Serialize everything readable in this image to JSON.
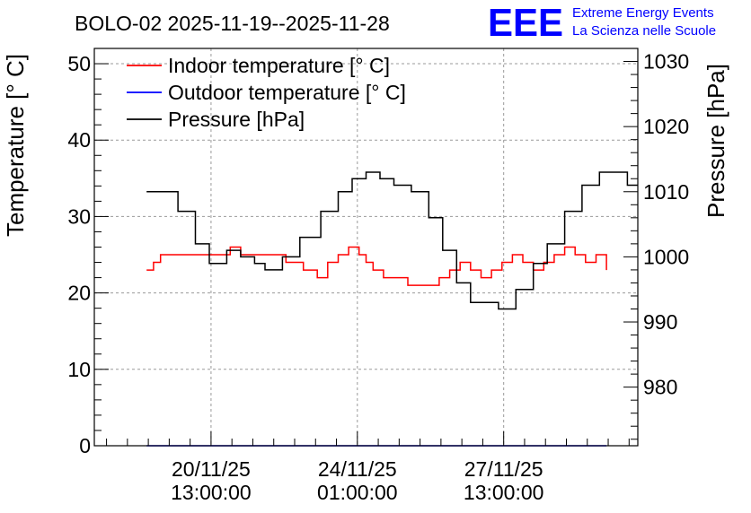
{
  "chart_data": {
    "type": "line",
    "title": "BOLO-02 2025-11-19--2025-11-28",
    "ylabel": "Temperature [° C]",
    "y2label": "Pressure [hPa]",
    "ylim": [
      0,
      52
    ],
    "y2lim": [
      971,
      1032
    ],
    "yticks": [
      0,
      10,
      20,
      30,
      40,
      50
    ],
    "y2ticks": [
      980,
      990,
      1000,
      1010,
      1020,
      1030
    ],
    "xlim": [
      "2025-11-17 18:00",
      "2025-11-30 18:00"
    ],
    "xticks": [
      {
        "x": "2025-11-20 13:00",
        "line1": "20/11/25",
        "line2": "13:00:00"
      },
      {
        "x": "2025-11-24 01:00",
        "line1": "24/11/25",
        "line2": "01:00:00"
      },
      {
        "x": "2025-11-27 13:00",
        "line1": "27/11/25",
        "line2": "13:00:00"
      }
    ],
    "grid": true,
    "legend_position": "top-left",
    "series": [
      {
        "name": "Indoor temperature [° C]",
        "color": "#ff0000",
        "axis": "left",
        "points": [
          [
            "2025-11-19 00:00",
            23
          ],
          [
            "2025-11-19 04:00",
            24
          ],
          [
            "2025-11-19 08:00",
            25
          ],
          [
            "2025-11-20 00:00",
            25
          ],
          [
            "2025-11-20 20:00",
            25
          ],
          [
            "2025-11-21 00:00",
            26
          ],
          [
            "2025-11-21 06:00",
            25
          ],
          [
            "2025-11-21 16:00",
            25
          ],
          [
            "2025-11-22 00:00",
            25
          ],
          [
            "2025-11-22 08:00",
            24
          ],
          [
            "2025-11-22 18:00",
            23
          ],
          [
            "2025-11-23 02:00",
            22
          ],
          [
            "2025-11-23 08:00",
            24
          ],
          [
            "2025-11-23 14:00",
            25
          ],
          [
            "2025-11-23 20:00",
            26
          ],
          [
            "2025-11-24 02:00",
            25
          ],
          [
            "2025-11-24 06:00",
            24
          ],
          [
            "2025-11-24 10:00",
            23
          ],
          [
            "2025-11-24 16:00",
            22
          ],
          [
            "2025-11-25 00:00",
            22
          ],
          [
            "2025-11-25 06:00",
            21
          ],
          [
            "2025-11-25 18:00",
            21
          ],
          [
            "2025-11-26 00:00",
            22
          ],
          [
            "2025-11-26 06:00",
            23
          ],
          [
            "2025-11-26 12:00",
            24
          ],
          [
            "2025-11-26 18:00",
            23
          ],
          [
            "2025-11-27 00:00",
            22
          ],
          [
            "2025-11-27 06:00",
            23
          ],
          [
            "2025-11-27 12:00",
            24
          ],
          [
            "2025-11-27 18:00",
            25
          ],
          [
            "2025-11-28 00:00",
            24
          ],
          [
            "2025-11-28 06:00",
            23
          ],
          [
            "2025-11-28 12:00",
            24
          ],
          [
            "2025-11-28 18:00",
            25
          ],
          [
            "2025-11-29 00:00",
            26
          ],
          [
            "2025-11-29 06:00",
            25
          ],
          [
            "2025-11-29 12:00",
            24
          ],
          [
            "2025-11-29 18:00",
            25
          ],
          [
            "2025-11-30 00:00",
            23
          ]
        ]
      },
      {
        "name": "Outdoor temperature [° C]",
        "color": "#0000ff",
        "axis": "left",
        "points": [
          [
            "2025-11-19 00:00",
            0
          ],
          [
            "2025-11-30 00:00",
            0
          ]
        ]
      },
      {
        "name": "Pressure [hPa]",
        "color": "#000000",
        "axis": "right",
        "points": [
          [
            "2025-11-19 00:00",
            1010
          ],
          [
            "2025-11-19 10:00",
            1010
          ],
          [
            "2025-11-19 18:00",
            1007
          ],
          [
            "2025-11-20 04:00",
            1002
          ],
          [
            "2025-11-20 12:00",
            999
          ],
          [
            "2025-11-20 22:00",
            1001
          ],
          [
            "2025-11-21 06:00",
            1000
          ],
          [
            "2025-11-21 14:00",
            999
          ],
          [
            "2025-11-21 20:00",
            998
          ],
          [
            "2025-11-22 06:00",
            1000
          ],
          [
            "2025-11-22 16:00",
            1003
          ],
          [
            "2025-11-23 04:00",
            1007
          ],
          [
            "2025-11-23 14:00",
            1010
          ],
          [
            "2025-11-23 22:00",
            1012
          ],
          [
            "2025-11-24 06:00",
            1013
          ],
          [
            "2025-11-24 14:00",
            1012
          ],
          [
            "2025-11-24 22:00",
            1011
          ],
          [
            "2025-11-25 08:00",
            1010
          ],
          [
            "2025-11-25 18:00",
            1006
          ],
          [
            "2025-11-26 02:00",
            1001
          ],
          [
            "2025-11-26 10:00",
            996
          ],
          [
            "2025-11-26 18:00",
            993
          ],
          [
            "2025-11-27 02:00",
            993
          ],
          [
            "2025-11-27 10:00",
            992
          ],
          [
            "2025-11-27 20:00",
            995
          ],
          [
            "2025-11-28 06:00",
            999
          ],
          [
            "2025-11-28 14:00",
            1002
          ],
          [
            "2025-11-29 00:00",
            1007
          ],
          [
            "2025-11-29 10:00",
            1011
          ],
          [
            "2025-11-29 20:00",
            1013
          ],
          [
            "2025-11-30 04:00",
            1013
          ],
          [
            "2025-11-30 12:00",
            1011
          ],
          [
            "2025-11-30 18:00",
            1011
          ]
        ]
      }
    ]
  },
  "logo": {
    "text": "EEE",
    "line1": "Extreme Energy Events",
    "line2": "La Scienza nelle Scuole",
    "color": "#0000ff"
  }
}
